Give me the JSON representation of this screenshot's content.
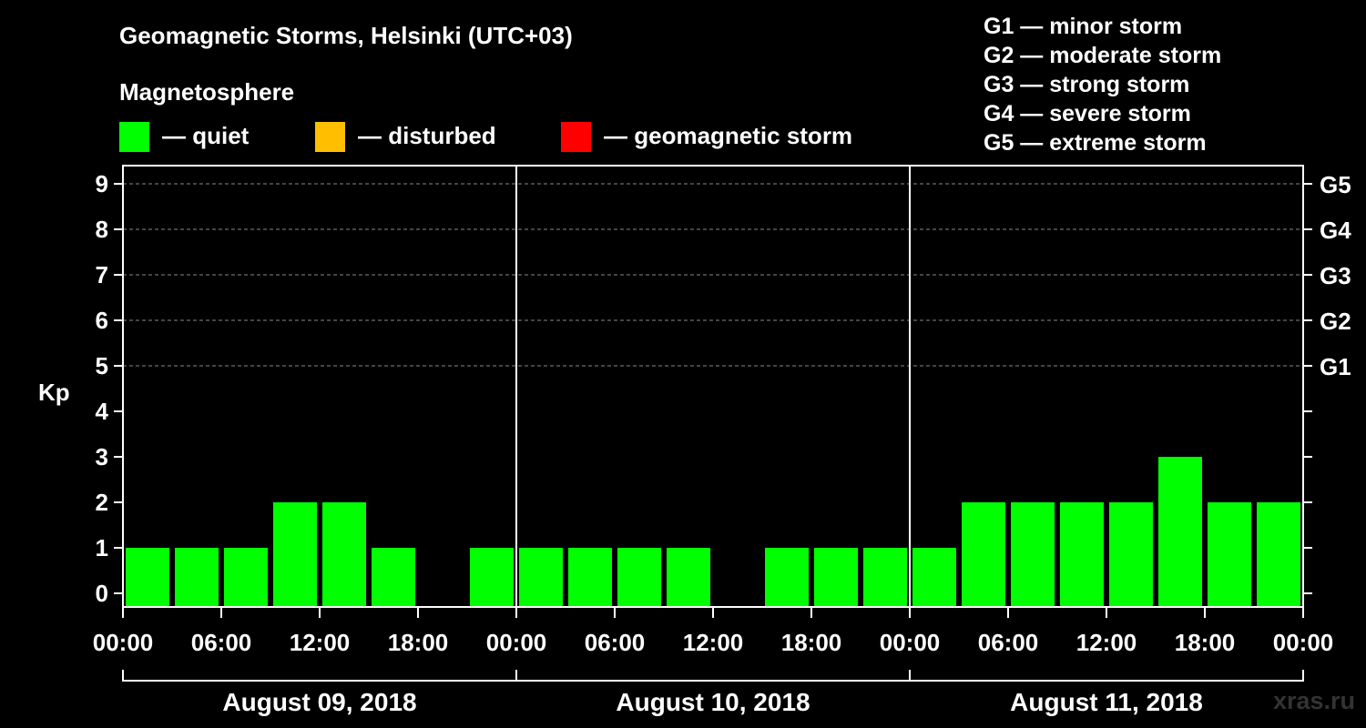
{
  "header": {
    "title": "Geomagnetic Storms, Helsinki (UTC+03)",
    "magnetosphere_label": "Magnetosphere"
  },
  "legend": [
    {
      "color": "#00ff00",
      "label": "— quiet"
    },
    {
      "color": "#ffbf00",
      "label": "— disturbed"
    },
    {
      "color": "#ff0000",
      "label": "— geomagnetic storm"
    }
  ],
  "storm_scale": [
    "G1 — minor storm",
    "G2 — moderate storm",
    "G3 — strong storm",
    "G4 — severe storm",
    "G5 — extreme storm"
  ],
  "watermark": "xras.ru",
  "chart_data": {
    "type": "bar",
    "ylabel": "Kp",
    "ylim": [
      0,
      9
    ],
    "yticks": [
      "0",
      "1",
      "2",
      "3",
      "4",
      "5",
      "6",
      "7",
      "8",
      "9"
    ],
    "right_ticks": [
      {
        "value": 5,
        "label": "G1"
      },
      {
        "value": 6,
        "label": "G2"
      },
      {
        "value": 7,
        "label": "G3"
      },
      {
        "value": 8,
        "label": "G4"
      },
      {
        "value": 9,
        "label": "G5"
      }
    ],
    "xticks": [
      "00:00",
      "06:00",
      "12:00",
      "18:00",
      "00:00",
      "06:00",
      "12:00",
      "18:00",
      "00:00",
      "06:00",
      "12:00",
      "18:00",
      "00:00"
    ],
    "days": [
      "August 09, 2018",
      "August 10, 2018",
      "August 11, 2018"
    ],
    "bar_color": "#00ff00",
    "values": [
      1,
      1,
      1,
      2,
      2,
      1,
      0,
      1,
      1,
      1,
      1,
      1,
      0,
      1,
      1,
      1,
      1,
      2,
      2,
      2,
      2,
      3,
      2,
      2
    ],
    "grid": true
  }
}
